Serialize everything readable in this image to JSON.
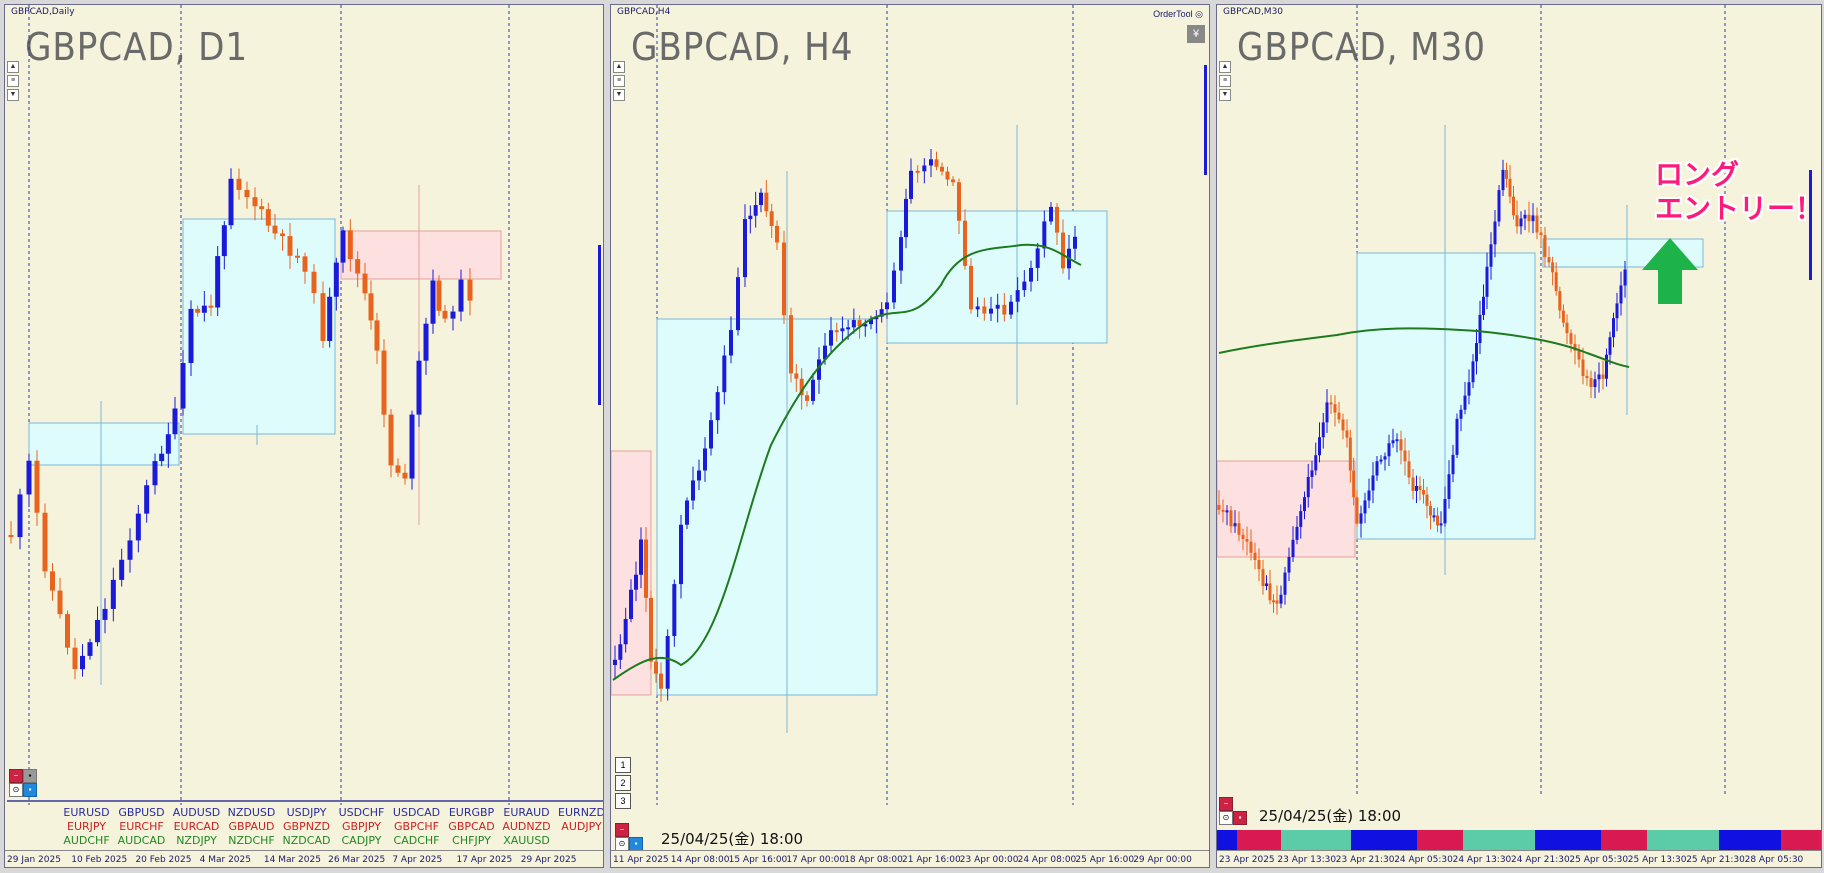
{
  "panels": [
    {
      "title": "GBPCAD,Daily",
      "big_label": "GBPCAD, D1",
      "ticks": [
        "29 Jan 2025",
        "10 Feb 2025",
        "20 Feb 2025",
        "4 Mar 2025",
        "14 Mar 2025",
        "26 Mar 2025",
        "7 Apr 2025",
        "17 Apr 2025",
        "29 Apr 2025"
      ]
    },
    {
      "title": "GBPCAD,H4",
      "big_label": "GBPCAD, H4",
      "order_tool": "OrderTool",
      "yen_icon": "¥",
      "stamp": "25/04/25(金) 18:00",
      "ticks": [
        "11 Apr 2025",
        "14 Apr 08:00",
        "15 Apr 16:00",
        "17 Apr 00:00",
        "18 Apr 08:00",
        "21 Apr 16:00",
        "23 Apr 00:00",
        "24 Apr 08:00",
        "25 Apr 16:00",
        "29 Apr 00:00"
      ],
      "buttons": [
        "1",
        "2",
        "3"
      ]
    },
    {
      "title": "GBPCAD,M30",
      "big_label": "GBPCAD, M30",
      "stamp": "25/04/25(金) 18:00",
      "ticks": [
        "23 Apr 2025",
        "23 Apr 13:30",
        "23 Apr 21:30",
        "24 Apr 05:30",
        "24 Apr 13:30",
        "24 Apr 21:30",
        "25 Apr 05:30",
        "25 Apr 13:30",
        "25 Apr 21:30",
        "28 Apr 05:30"
      ],
      "annotation_line1": "ロング",
      "annotation_line2": "エントリー！"
    }
  ],
  "pairs_table": {
    "rows": [
      [
        "EURUSD",
        "GBPUSD",
        "AUDUSD",
        "NZDUSD",
        "USDJPY",
        "USDCHF",
        "USDCAD",
        "EURGBP",
        "EURAUD",
        "EURNZD"
      ],
      [
        "EURJPY",
        "EURCHF",
        "EURCAD",
        "GBPAUD",
        "GBPNZD",
        "GBPJPY",
        "GBPCHF",
        "GBPCAD",
        "AUDNZD",
        "AUDJPY"
      ],
      [
        "AUDCHF",
        "AUDCAD",
        "NZDJPY",
        "NZDCHF",
        "NZDCAD",
        "CADJPY",
        "CADCHF",
        "CHFJPY",
        "XAUUSD",
        ""
      ]
    ],
    "row_colors": [
      "#2a2aa0",
      "#cc2222",
      "#228822"
    ]
  },
  "colors": {
    "background": "#f5f3dc",
    "bull": "#1a1ad8",
    "bear": "#e8641e",
    "ma": "#1e7a1e",
    "cyan_box": "#dffcfc",
    "pink_box": "#fde0e0",
    "entry_arrow": "#1db34a"
  }
}
